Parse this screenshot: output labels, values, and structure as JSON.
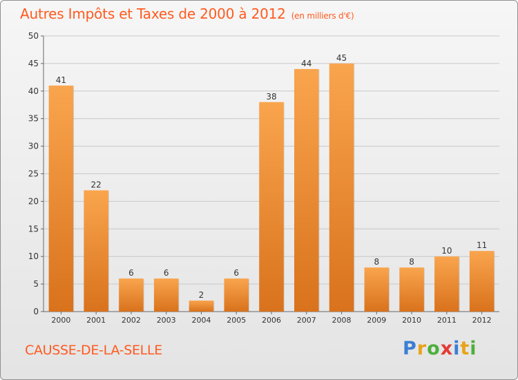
{
  "title": {
    "main": "Autres Impôts et Taxes de 2000 à 2012",
    "unit": "(en milliers d'€)"
  },
  "location": "CAUSSE-DE-LA-SELLE",
  "logo": {
    "text": "Proxiti",
    "letters": [
      {
        "char": "P",
        "color": "#3b7fd4"
      },
      {
        "char": "r",
        "color": "#e8a31a"
      },
      {
        "char": "o",
        "color": "#4caf3c"
      },
      {
        "char": "x",
        "color": "#e53935"
      },
      {
        "char": "i",
        "color": "#3b7fd4"
      },
      {
        "char": "t",
        "color": "#e8a31a"
      },
      {
        "char": "i",
        "color": "#4caf3c"
      }
    ]
  },
  "colors": {
    "title": "#ff5a1f",
    "bar_light": "#f9a54e",
    "bar_dark": "#d9721c",
    "grid": "#c8c8c8",
    "axis": "#666666",
    "text": "#333333"
  },
  "chart_data": {
    "type": "bar",
    "title": "Autres Impôts et Taxes de 2000 à 2012",
    "ylabel": "",
    "xlabel": "",
    "categories": [
      "2000",
      "2001",
      "2002",
      "2003",
      "2004",
      "2005",
      "2006",
      "2007",
      "2008",
      "2009",
      "2010",
      "2011",
      "2012"
    ],
    "values": [
      41,
      22,
      6,
      6,
      2,
      6,
      38,
      44,
      45,
      8,
      8,
      10,
      11
    ],
    "ylim": [
      0,
      50
    ],
    "yticks": [
      0,
      5,
      10,
      15,
      20,
      25,
      30,
      35,
      40,
      45,
      50
    ],
    "grid": true,
    "data_labels": true
  }
}
